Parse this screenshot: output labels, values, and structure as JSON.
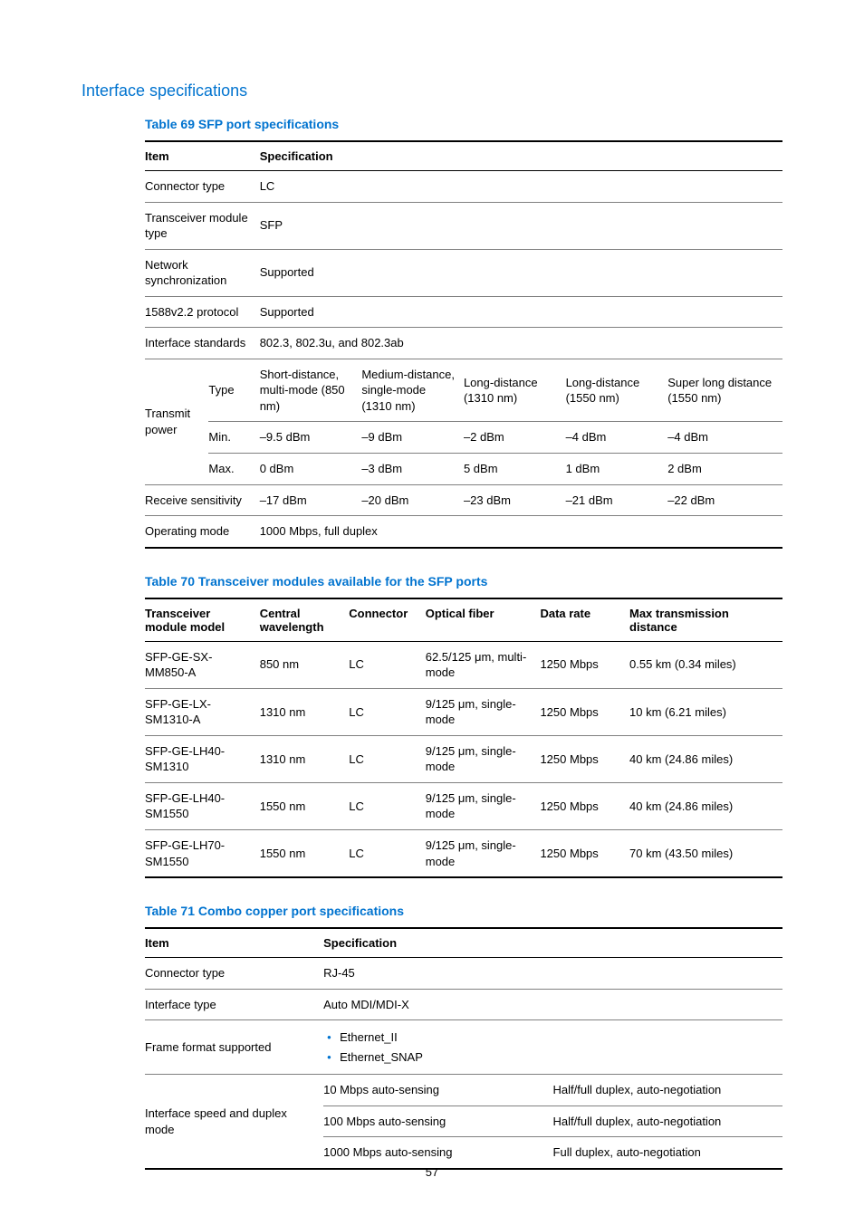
{
  "page_number": "57",
  "section_heading": "Interface specifications",
  "table69": {
    "caption": "Table 69 SFP port specifications",
    "col_item": "Item",
    "col_spec": "Specification",
    "rows": {
      "connector_type": {
        "item": "Connector type",
        "spec": "LC"
      },
      "transceiver_type": {
        "item": "Transceiver module type",
        "spec": "SFP"
      },
      "net_sync": {
        "item": "Network synchronization",
        "spec": "Supported"
      },
      "ptp": {
        "item": "1588v2.2 protocol",
        "spec": "Supported"
      },
      "if_standards": {
        "item": "Interface standards",
        "spec": "802.3, 802.3u, and 802.3ab"
      },
      "operating_mode": {
        "item": "Operating mode",
        "spec": "1000 Mbps, full duplex"
      }
    },
    "tx_power": {
      "label": "Transmit power",
      "type_label": "Type",
      "min_label": "Min.",
      "max_label": "Max.",
      "cols": [
        "Short-distance, multi-mode (850 nm)",
        "Medium-distance, single-mode (1310 nm)",
        "Long-distance (1310 nm)",
        "Long-distance (1550 nm)",
        "Super long distance (1550 nm)"
      ],
      "min": [
        "–9.5 dBm",
        "–9 dBm",
        "–2 dBm",
        "–4 dBm",
        "–4 dBm"
      ],
      "max": [
        "0 dBm",
        "–3 dBm",
        "5 dBm",
        "1 dBm",
        "2 dBm"
      ]
    },
    "rx_sens": {
      "label": "Receive sensitivity",
      "vals": [
        "–17 dBm",
        "–20 dBm",
        "–23 dBm",
        "–21 dBm",
        "–22 dBm"
      ]
    }
  },
  "table70": {
    "caption": "Table 70 Transceiver modules available for the SFP ports",
    "cols": {
      "model": "Transceiver module model",
      "wavelength": "Central wavelength",
      "connector": "Connector",
      "fiber": "Optical fiber",
      "rate": "Data rate",
      "distance": "Max transmission distance"
    },
    "rows": [
      {
        "model": "SFP-GE-SX-MM850-A",
        "wavelength": "850 nm",
        "connector": "LC",
        "fiber": "62.5/125 μm, multi-mode",
        "rate": "1250 Mbps",
        "distance": "0.55 km (0.34 miles)"
      },
      {
        "model": "SFP-GE-LX-SM1310-A",
        "wavelength": "1310 nm",
        "connector": "LC",
        "fiber": "9/125 μm, single-mode",
        "rate": "1250 Mbps",
        "distance": "10 km (6.21 miles)"
      },
      {
        "model": "SFP-GE-LH40-SM1310",
        "wavelength": "1310 nm",
        "connector": "LC",
        "fiber": "9/125 μm, single-mode",
        "rate": "1250 Mbps",
        "distance": "40 km (24.86 miles)"
      },
      {
        "model": "SFP-GE-LH40-SM1550",
        "wavelength": "1550 nm",
        "connector": "LC",
        "fiber": "9/125 μm, single-mode",
        "rate": "1250 Mbps",
        "distance": "40 km (24.86 miles)"
      },
      {
        "model": "SFP-GE-LH70-SM1550",
        "wavelength": "1550 nm",
        "connector": "LC",
        "fiber": "9/125 μm, single-mode",
        "rate": "1250 Mbps",
        "distance": "70 km (43.50 miles)"
      }
    ]
  },
  "table71": {
    "caption": "Table 71 Combo copper port specifications",
    "col_item": "Item",
    "col_spec": "Specification",
    "rows": {
      "connector_type": {
        "item": "Connector type",
        "spec": "RJ-45"
      },
      "interface_type": {
        "item": "Interface type",
        "spec": "Auto MDI/MDI-X"
      },
      "frame_format": {
        "item": "Frame format supported",
        "bullets": [
          "Ethernet_II",
          "Ethernet_SNAP"
        ]
      },
      "speed_duplex": {
        "item": "Interface speed and duplex mode",
        "speeds": [
          {
            "speed": "10 Mbps auto-sensing",
            "mode": "Half/full duplex, auto-negotiation"
          },
          {
            "speed": "100 Mbps auto-sensing",
            "mode": "Half/full duplex, auto-negotiation"
          },
          {
            "speed": "1000 Mbps auto-sensing",
            "mode": "Full duplex, auto-negotiation"
          }
        ]
      }
    }
  },
  "colors": {
    "heading": "#0073cf",
    "caption": "#0073cf",
    "border_heavy": "#000000",
    "border_light": "#808080",
    "text": "#000000",
    "background": "#ffffff"
  }
}
